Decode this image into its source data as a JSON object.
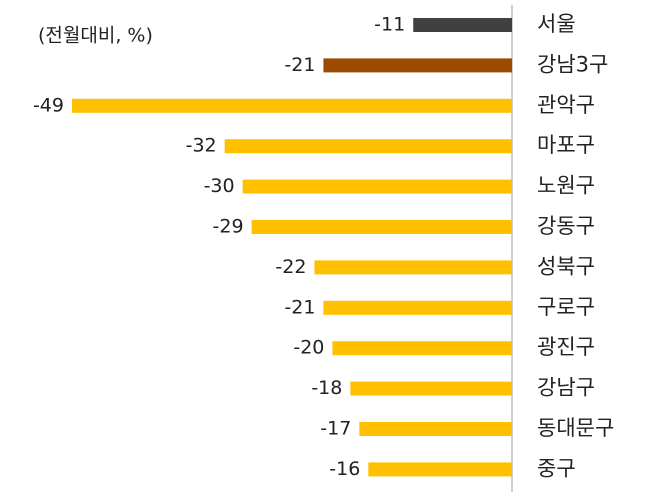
{
  "chart_data": {
    "type": "bar",
    "orientation": "horizontal",
    "subtitle": "(전월대비, %)",
    "categories": [
      "서울",
      "강남3구",
      "관악구",
      "마포구",
      "노원구",
      "강동구",
      "성북구",
      "구로구",
      "광진구",
      "강남구",
      "동대문구",
      "중구"
    ],
    "values": [
      -11,
      -21,
      -49,
      -32,
      -30,
      -29,
      -22,
      -21,
      -20,
      -18,
      -17,
      -16
    ],
    "colors": [
      "#404040",
      "#9c4a00",
      "#ffc000",
      "#ffc000",
      "#ffc000",
      "#ffc000",
      "#ffc000",
      "#ffc000",
      "#ffc000",
      "#ffc000",
      "#ffc000",
      "#ffc000"
    ]
  }
}
